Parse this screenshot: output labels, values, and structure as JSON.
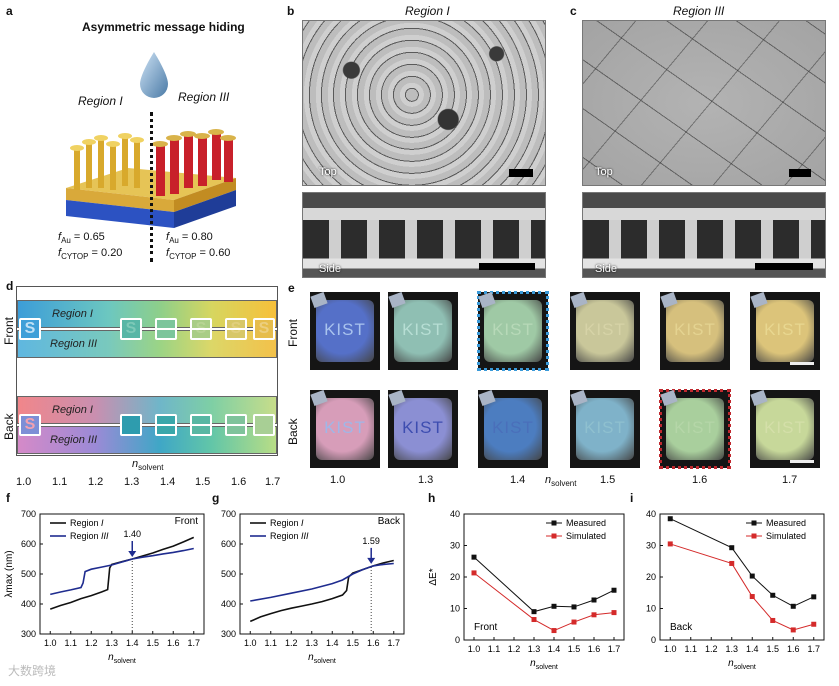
{
  "panel_labels": {
    "a": "a",
    "b": "b",
    "c": "c",
    "d": "d",
    "e": "e",
    "f": "f",
    "g": "g",
    "h": "h",
    "i": "i"
  },
  "panel_a": {
    "title": "Asymmetric message hiding",
    "region1": "Region I",
    "region3": "Region III",
    "f_au_1": "f",
    "f_au_1_sub": "Au",
    "f_au_1_val": " = 0.65",
    "f_cy_1": "f",
    "f_cy_1_sub": "CYTOP",
    "f_cy_1_val": " = 0.20",
    "f_au_3": "f",
    "f_au_3_sub": "Au",
    "f_au_3_val": " = 0.80",
    "f_cy_3": "f",
    "f_cy_3_sub": "CYTOP",
    "f_cy_3_val": " = 0.60"
  },
  "panel_b": {
    "title": "Region I",
    "top": "Top",
    "side": "Side"
  },
  "panel_c": {
    "title": "Region III",
    "top": "Top",
    "side": "Side"
  },
  "panel_d": {
    "front": "Front",
    "back": "Back",
    "region1": "Region I",
    "region3": "Region III",
    "s_letter": "S",
    "xlabel": "n",
    "xlabel_sub": "solvent",
    "ticks": [
      "1.0",
      "1.1",
      "1.2",
      "1.3",
      "1.4",
      "1.5",
      "1.6",
      "1.7"
    ]
  },
  "panel_e": {
    "front": "Front",
    "back": "Back",
    "kist": "KIST",
    "xlabel": "n",
    "xlabel_sub": "solvent",
    "ticks": [
      "1.0",
      "1.3",
      "1.4",
      "1.5",
      "1.6",
      "1.7"
    ]
  },
  "colors": {
    "region1": "#111111",
    "region3": "#1f2c8f",
    "measured": "#111111",
    "simulated": "#d42a2a",
    "arrow": "#1f2c8f"
  },
  "watermark": "大数跨境",
  "chart_data": [
    {
      "id": "f",
      "type": "line",
      "title": "Front",
      "xlabel": "n_solvent",
      "ylabel": "λmax (nm)",
      "xlim": [
        0.95,
        1.75
      ],
      "ylim": [
        300,
        700
      ],
      "xticks": [
        1.0,
        1.1,
        1.2,
        1.3,
        1.4,
        1.5,
        1.6,
        1.7
      ],
      "yticks": [
        300,
        400,
        500,
        600,
        700
      ],
      "annotation": {
        "x": 1.4,
        "label": "1.40"
      },
      "series": [
        {
          "name": "Region I",
          "color": "#111111",
          "x": [
            1.0,
            1.05,
            1.1,
            1.15,
            1.2,
            1.25,
            1.28,
            1.29,
            1.3,
            1.35,
            1.4,
            1.45,
            1.5,
            1.55,
            1.6,
            1.65,
            1.7
          ],
          "y": [
            383,
            395,
            405,
            418,
            428,
            440,
            448,
            520,
            532,
            541,
            550,
            560,
            570,
            582,
            593,
            607,
            622
          ]
        },
        {
          "name": "Region III",
          "color": "#1f2c8f",
          "x": [
            1.0,
            1.05,
            1.1,
            1.15,
            1.16,
            1.17,
            1.2,
            1.25,
            1.3,
            1.35,
            1.4,
            1.45,
            1.5,
            1.55,
            1.6,
            1.65,
            1.7
          ],
          "y": [
            432,
            440,
            447,
            455,
            470,
            508,
            516,
            523,
            530,
            540,
            550,
            556,
            561,
            567,
            572,
            578,
            585
          ]
        }
      ]
    },
    {
      "id": "g",
      "type": "line",
      "title": "Back",
      "xlabel": "n_solvent",
      "ylabel": "",
      "xlim": [
        0.95,
        1.75
      ],
      "ylim": [
        300,
        700
      ],
      "xticks": [
        1.0,
        1.1,
        1.2,
        1.3,
        1.4,
        1.5,
        1.6,
        1.7
      ],
      "yticks": [
        300,
        400,
        500,
        600,
        700
      ],
      "annotation": {
        "x": 1.59,
        "label": "1.59"
      },
      "series": [
        {
          "name": "Region I",
          "color": "#111111",
          "x": [
            1.0,
            1.05,
            1.1,
            1.15,
            1.2,
            1.25,
            1.3,
            1.35,
            1.4,
            1.45,
            1.47,
            1.48,
            1.5,
            1.55,
            1.6,
            1.65,
            1.7
          ],
          "y": [
            342,
            357,
            368,
            378,
            386,
            393,
            400,
            408,
            418,
            430,
            445,
            490,
            503,
            515,
            527,
            537,
            545
          ]
        },
        {
          "name": "Region III",
          "color": "#1f2c8f",
          "x": [
            1.0,
            1.1,
            1.2,
            1.3,
            1.4,
            1.45,
            1.5,
            1.55,
            1.6,
            1.65,
            1.7
          ],
          "y": [
            410,
            422,
            436,
            450,
            468,
            480,
            500,
            515,
            527,
            532,
            535
          ]
        }
      ]
    },
    {
      "id": "h",
      "type": "line",
      "title": "Front",
      "xlabel": "n_solvent",
      "ylabel": "ΔE*",
      "xlim": [
        0.95,
        1.75
      ],
      "ylim": [
        0,
        40
      ],
      "xticks": [
        1.0,
        1.1,
        1.2,
        1.3,
        1.4,
        1.5,
        1.6,
        1.7
      ],
      "yticks": [
        0,
        10,
        20,
        30,
        40
      ],
      "series": [
        {
          "name": "Measured",
          "color": "#111111",
          "x": [
            1.0,
            1.3,
            1.4,
            1.5,
            1.6,
            1.7
          ],
          "y": [
            26.3,
            9.0,
            10.7,
            10.5,
            12.7,
            15.8
          ]
        },
        {
          "name": "Simulated",
          "color": "#d42a2a",
          "x": [
            1.0,
            1.3,
            1.4,
            1.5,
            1.6,
            1.7
          ],
          "y": [
            21.3,
            6.5,
            3.0,
            5.7,
            8.0,
            8.7
          ]
        }
      ]
    },
    {
      "id": "i",
      "type": "line",
      "title": "Back",
      "xlabel": "n_solvent",
      "ylabel": "",
      "xlim": [
        0.95,
        1.75
      ],
      "ylim": [
        0,
        40
      ],
      "xticks": [
        1.0,
        1.1,
        1.2,
        1.3,
        1.4,
        1.5,
        1.6,
        1.7
      ],
      "yticks": [
        0,
        10,
        20,
        30,
        40
      ],
      "series": [
        {
          "name": "Measured",
          "color": "#111111",
          "x": [
            1.0,
            1.3,
            1.4,
            1.5,
            1.6,
            1.7
          ],
          "y": [
            38.5,
            29.3,
            20.3,
            14.2,
            10.7,
            13.7
          ]
        },
        {
          "name": "Simulated",
          "color": "#d42a2a",
          "x": [
            1.0,
            1.3,
            1.4,
            1.5,
            1.6,
            1.7
          ],
          "y": [
            30.5,
            24.3,
            13.8,
            6.2,
            3.2,
            5.0
          ]
        }
      ]
    }
  ],
  "legend_f": {
    "r1": "Region ",
    "r1i": "I",
    "r3": "Region ",
    "r3i": "III",
    "title": "Front"
  },
  "legend_g": {
    "r1": "Region ",
    "r1i": "I",
    "r3": "Region ",
    "r3i": "III",
    "title": "Back"
  },
  "legend_h": {
    "m": "Measured",
    "s": "Simulated",
    "title": "Front"
  },
  "legend_i": {
    "m": "Measured",
    "s": "Simulated",
    "title": "Back"
  }
}
